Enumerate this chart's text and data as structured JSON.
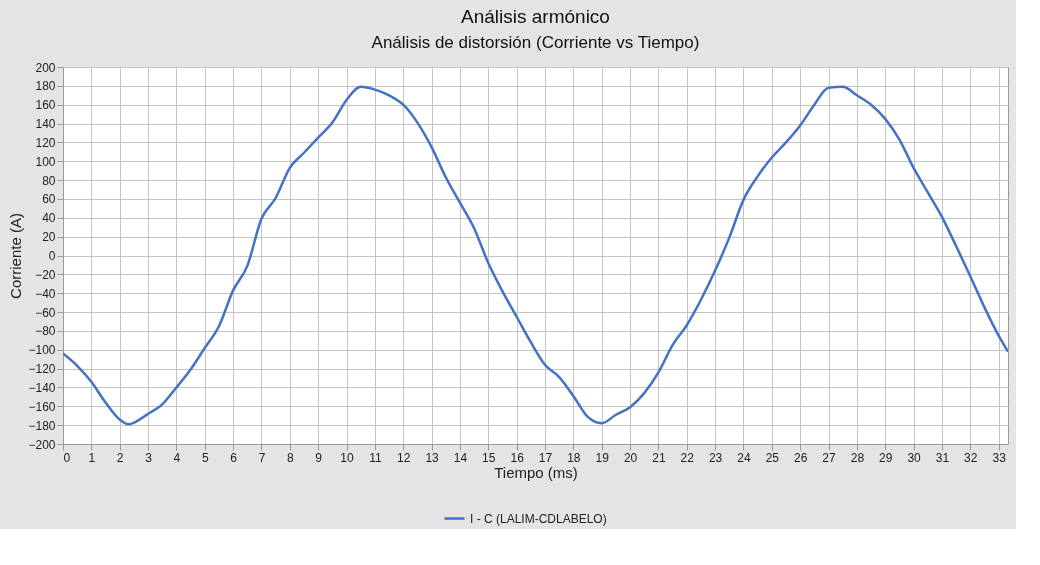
{
  "chart_data": {
    "type": "line",
    "title": "Análisis armónico",
    "subtitle": "Análisis de distorsión (Corriente vs Tiempo)",
    "xlabel": "Tiempo (ms)",
    "ylabel": "Corriente (A)",
    "xlim": [
      0,
      33.33
    ],
    "xticks": [
      0,
      1,
      2,
      3,
      4,
      5,
      6,
      7,
      8,
      9,
      10,
      11,
      12,
      13,
      14,
      15,
      16,
      17,
      18,
      19,
      20,
      21,
      22,
      23,
      24,
      25,
      26,
      27,
      28,
      29,
      30,
      31,
      32,
      33
    ],
    "ylim": [
      -200,
      200
    ],
    "yticks": [
      -200,
      -180,
      -160,
      -140,
      -120,
      -100,
      -80,
      -60,
      -40,
      -20,
      0,
      20,
      40,
      60,
      80,
      100,
      120,
      140,
      160,
      180,
      200
    ],
    "grid": true,
    "legend": "bottom",
    "marker": "none",
    "line_style": "solid",
    "series": [
      {
        "name": "I - C (LALIM-CDLABELO)",
        "color": "#4472c4",
        "x": [
          0,
          0.5,
          1,
          1.5,
          2,
          2.3,
          3,
          3.5,
          4,
          4.5,
          5,
          5.5,
          6,
          6.5,
          7,
          7.5,
          8,
          8.5,
          9,
          9.5,
          10,
          10.5,
          11,
          11.5,
          12,
          12.5,
          13,
          13.5,
          14,
          14.5,
          15,
          15.5,
          16,
          16.5,
          17,
          17.5,
          18,
          18.5,
          19,
          19.5,
          20,
          20.5,
          21,
          21.5,
          22,
          22.5,
          23,
          23.5,
          24,
          24.5,
          25,
          25.5,
          26,
          26.5,
          27,
          27.5,
          28,
          28.5,
          29,
          29.5,
          30,
          30.5,
          31,
          31.5,
          32,
          32.5,
          33,
          33.33
        ],
        "values": [
          -104,
          -117,
          -134,
          -156,
          -174,
          -179,
          -168,
          -158,
          -140,
          -121,
          -98,
          -75,
          -37,
          -11,
          39,
          61,
          93,
          109,
          125,
          141,
          165,
          179,
          176,
          170,
          160,
          141,
          115,
          83,
          56,
          29,
          -8,
          -38,
          -65,
          -92,
          -116,
          -129,
          -149,
          -171,
          -178,
          -169,
          -161,
          -146,
          -124,
          -95,
          -74,
          -47,
          -16,
          19,
          59,
          84,
          104,
          120,
          138,
          160,
          178,
          179,
          170,
          160,
          145,
          123,
          93,
          67,
          41,
          10,
          -22,
          -55,
          -85,
          -102
        ]
      }
    ]
  }
}
